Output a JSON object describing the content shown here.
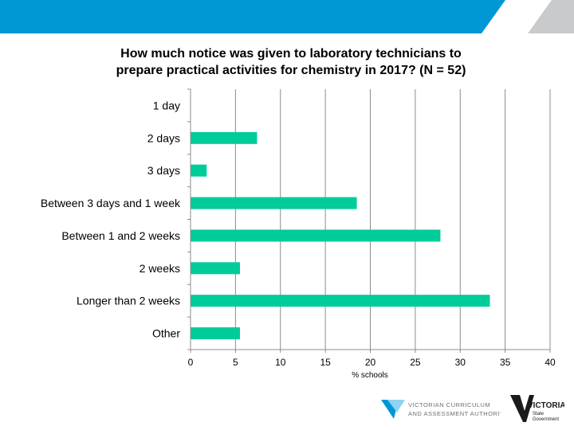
{
  "header": {
    "accent_color": "#0097d7",
    "stripe_color": "#c9cacc"
  },
  "chart_data": {
    "type": "bar",
    "orientation": "horizontal",
    "title": "How much notice was given to laboratory technicians to prepare practical activities for chemistry in 2017? (N = 52)",
    "title_lines": [
      "How much notice was given to laboratory technicians to",
      "prepare practical activities for chemistry in 2017? (N = 52)"
    ],
    "categories": [
      "1 day",
      "2 days",
      "3 days",
      "Between 3 days and 1 week",
      "Between 1 and 2 weeks",
      "2 weeks",
      "Longer than 2 weeks",
      "Other"
    ],
    "values": [
      0,
      7.4,
      1.8,
      18.5,
      27.8,
      5.5,
      33.3,
      5.5
    ],
    "xlabel": "% schools",
    "ylabel": "",
    "xlim": [
      0,
      40
    ],
    "xticks": [
      0,
      5,
      10,
      15,
      20,
      25,
      30,
      35,
      40
    ],
    "grid": true,
    "legend": "none",
    "bar_color": "#00cc99"
  },
  "footer": {
    "vcaa_logo_text": [
      "VICTORIAN CURRICULUM",
      "AND ASSESSMENT AUTHORITY"
    ],
    "vic_logo_text": [
      "VICTORIA",
      "State",
      "Government"
    ]
  }
}
